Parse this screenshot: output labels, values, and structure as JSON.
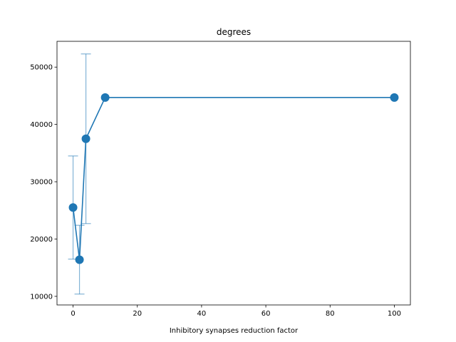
{
  "chart_data": {
    "type": "line",
    "title": "degrees",
    "xlabel": "Inhibitory synapses reduction factor",
    "ylabel": "",
    "xlim": [
      -5,
      105
    ],
    "ylim": [
      8500,
      54500
    ],
    "x_ticks": [
      0,
      20,
      40,
      60,
      80,
      100
    ],
    "y_ticks": [
      10000,
      20000,
      30000,
      40000,
      50000
    ],
    "grid": false,
    "legend": "none",
    "color": "#1f77b4",
    "series": [
      {
        "x": [
          0,
          2,
          4,
          10,
          100
        ],
        "y": [
          25500,
          16400,
          37500,
          44700,
          44700
        ],
        "yerr": [
          9000,
          6000,
          14800,
          0,
          0
        ]
      }
    ]
  }
}
